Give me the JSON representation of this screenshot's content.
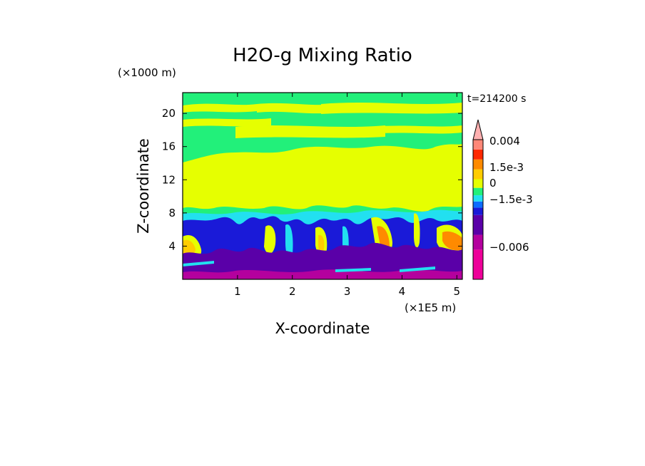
{
  "chart_data": {
    "type": "heatmap",
    "title": "H2O-g Mixing Ratio",
    "xlabel": "X-coordinate",
    "ylabel": "Z-coordinate",
    "x_unit": "(×1E5 m)",
    "y_unit": "(×1000 m)",
    "time_label": "t=214200 s",
    "xlim": [
      0,
      5.1
    ],
    "ylim": [
      0,
      22.5
    ],
    "x_ticks": [
      1,
      2,
      3,
      4,
      5
    ],
    "y_ticks": [
      4,
      8,
      12,
      16,
      20
    ],
    "colorbar": {
      "levels": [
        {
          "color": "#ee0099"
        },
        {
          "color": "#b4009e"
        },
        {
          "color": "#5a00a8"
        },
        {
          "color": "#1a1ad8"
        },
        {
          "color": "#0c6cff"
        },
        {
          "color": "#22e0f0"
        },
        {
          "color": "#22f07a"
        },
        {
          "color": "#e6ff00"
        },
        {
          "color": "#ffcc00"
        },
        {
          "color": "#ff8a00"
        },
        {
          "color": "#ff2800"
        },
        {
          "color": "#ff8878"
        },
        {
          "color": "#ffb0b0"
        }
      ],
      "labels": [
        "0.004",
        "1.5e-3",
        "0",
        "−1.5e-3",
        "−0.006"
      ]
    },
    "regions": [
      {
        "level": "#22f07a",
        "desc": "upper band z 16–22"
      },
      {
        "level": "#e6ff00",
        "desc": "middle band z 9–16"
      },
      {
        "level": "#22e0f0",
        "desc": "transition z 7–9"
      },
      {
        "level": "#1a1ad8",
        "desc": "plumes z 2–8"
      },
      {
        "level": "#5a00a8",
        "desc": "bottom z 0–5"
      }
    ]
  }
}
